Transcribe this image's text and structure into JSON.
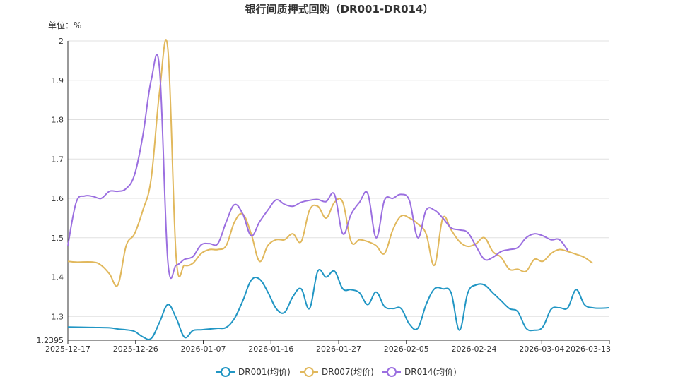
{
  "chart_data": {
    "type": "line",
    "title": "银行间质押式回购（DR001-DR014）",
    "unit_label": "单位：%",
    "xlabel": "",
    "ylabel": "",
    "ylim": [
      1.2395,
      2.0
    ],
    "y_ticks": [
      "1.2395",
      "1.3",
      "1.4",
      "1.5",
      "1.6",
      "1.7",
      "1.8",
      "1.9",
      "2"
    ],
    "x_tick_labels": [
      "2025-12-17",
      "2025-12-26",
      "2026-01-07",
      "2026-01-16",
      "2026-01-27",
      "2026-02-05",
      "2026-02-24",
      "2026-03-04",
      "2026-03-13"
    ],
    "grid": true,
    "legend_position": "bottom",
    "series": [
      {
        "name": "DR001(均价)",
        "color": "#2196c4",
        "points": [
          [
            0,
            1.273
          ],
          [
            3,
            1.272
          ],
          [
            5,
            1.271
          ],
          [
            6,
            1.268
          ],
          [
            7,
            1.266
          ],
          [
            8,
            1.262
          ],
          [
            9,
            1.248
          ],
          [
            10,
            1.244
          ],
          [
            11,
            1.285
          ],
          [
            12,
            1.33
          ],
          [
            13,
            1.296
          ],
          [
            14,
            1.247
          ],
          [
            15,
            1.264
          ],
          [
            16,
            1.266
          ],
          [
            17,
            1.268
          ],
          [
            18,
            1.27
          ],
          [
            19,
            1.272
          ],
          [
            20,
            1.295
          ],
          [
            21,
            1.34
          ],
          [
            22,
            1.392
          ],
          [
            23,
            1.395
          ],
          [
            24,
            1.362
          ],
          [
            25,
            1.32
          ],
          [
            26,
            1.31
          ],
          [
            27,
            1.35
          ],
          [
            28,
            1.37
          ],
          [
            29,
            1.32
          ],
          [
            30,
            1.415
          ],
          [
            31,
            1.4
          ],
          [
            32,
            1.415
          ],
          [
            33,
            1.37
          ],
          [
            34,
            1.368
          ],
          [
            35,
            1.36
          ],
          [
            36,
            1.33
          ],
          [
            37,
            1.362
          ],
          [
            38,
            1.325
          ],
          [
            39,
            1.32
          ],
          [
            40,
            1.32
          ],
          [
            41,
            1.28
          ],
          [
            42,
            1.27
          ],
          [
            43,
            1.33
          ],
          [
            44,
            1.37
          ],
          [
            45,
            1.37
          ],
          [
            46,
            1.36
          ],
          [
            47,
            1.265
          ],
          [
            48,
            1.36
          ],
          [
            49,
            1.38
          ],
          [
            50,
            1.38
          ],
          [
            51,
            1.36
          ],
          [
            52,
            1.34
          ],
          [
            53,
            1.32
          ],
          [
            54,
            1.312
          ],
          [
            55,
            1.27
          ],
          [
            56,
            1.265
          ],
          [
            57,
            1.273
          ],
          [
            58,
            1.318
          ],
          [
            59,
            1.322
          ],
          [
            60,
            1.322
          ],
          [
            61,
            1.368
          ],
          [
            62,
            1.33
          ],
          [
            63,
            1.322
          ],
          [
            64,
            1.321
          ],
          [
            65,
            1.322
          ]
        ]
      },
      {
        "name": "DR007(均价)",
        "color": "#e1b85c",
        "points": [
          [
            0,
            1.44
          ],
          [
            1,
            1.438
          ],
          [
            3,
            1.438
          ],
          [
            4,
            1.43
          ],
          [
            5,
            1.408
          ],
          [
            6,
            1.38
          ],
          [
            7,
            1.48
          ],
          [
            8,
            1.51
          ],
          [
            9,
            1.57
          ],
          [
            10,
            1.65
          ],
          [
            11,
            1.87
          ],
          [
            12,
            1.98
          ],
          [
            13,
            1.45
          ],
          [
            14,
            1.43
          ],
          [
            15,
            1.435
          ],
          [
            16,
            1.46
          ],
          [
            17,
            1.47
          ],
          [
            18,
            1.47
          ],
          [
            19,
            1.48
          ],
          [
            20,
            1.54
          ],
          [
            21,
            1.56
          ],
          [
            22,
            1.51
          ],
          [
            23,
            1.44
          ],
          [
            24,
            1.48
          ],
          [
            25,
            1.495
          ],
          [
            26,
            1.495
          ],
          [
            27,
            1.51
          ],
          [
            28,
            1.49
          ],
          [
            29,
            1.57
          ],
          [
            30,
            1.58
          ],
          [
            31,
            1.55
          ],
          [
            32,
            1.59
          ],
          [
            33,
            1.59
          ],
          [
            34,
            1.49
          ],
          [
            35,
            1.495
          ],
          [
            36,
            1.49
          ],
          [
            37,
            1.48
          ],
          [
            38,
            1.46
          ],
          [
            39,
            1.52
          ],
          [
            40,
            1.555
          ],
          [
            41,
            1.55
          ],
          [
            42,
            1.535
          ],
          [
            43,
            1.51
          ],
          [
            44,
            1.43
          ],
          [
            45,
            1.55
          ],
          [
            46,
            1.52
          ],
          [
            47,
            1.49
          ],
          [
            48,
            1.478
          ],
          [
            49,
            1.485
          ],
          [
            50,
            1.5
          ],
          [
            51,
            1.465
          ],
          [
            52,
            1.45
          ],
          [
            53,
            1.42
          ],
          [
            54,
            1.42
          ],
          [
            55,
            1.415
          ],
          [
            56,
            1.445
          ],
          [
            57,
            1.44
          ],
          [
            58,
            1.46
          ],
          [
            59,
            1.47
          ],
          [
            60,
            1.465
          ],
          [
            61,
            1.458
          ],
          [
            62,
            1.45
          ],
          [
            63,
            1.435
          ]
        ]
      },
      {
        "name": "DR014(均价)",
        "color": "#9b6fe0",
        "points": [
          [
            0,
            1.48
          ],
          [
            1,
            1.59
          ],
          [
            2,
            1.606
          ],
          [
            3,
            1.605
          ],
          [
            4,
            1.6
          ],
          [
            5,
            1.618
          ],
          [
            6,
            1.618
          ],
          [
            7,
            1.625
          ],
          [
            8,
            1.66
          ],
          [
            9,
            1.76
          ],
          [
            10,
            1.9
          ],
          [
            11,
            1.93
          ],
          [
            12,
            1.44
          ],
          [
            13,
            1.43
          ],
          [
            14,
            1.445
          ],
          [
            15,
            1.452
          ],
          [
            16,
            1.482
          ],
          [
            17,
            1.485
          ],
          [
            18,
            1.485
          ],
          [
            19,
            1.54
          ],
          [
            20,
            1.584
          ],
          [
            21,
            1.56
          ],
          [
            22,
            1.505
          ],
          [
            23,
            1.54
          ],
          [
            24,
            1.57
          ],
          [
            25,
            1.596
          ],
          [
            26,
            1.585
          ],
          [
            27,
            1.58
          ],
          [
            28,
            1.59
          ],
          [
            29,
            1.595
          ],
          [
            30,
            1.597
          ],
          [
            31,
            1.592
          ],
          [
            32,
            1.61
          ],
          [
            33,
            1.51
          ],
          [
            34,
            1.56
          ],
          [
            35,
            1.59
          ],
          [
            36,
            1.612
          ],
          [
            37,
            1.5
          ],
          [
            38,
            1.595
          ],
          [
            39,
            1.6
          ],
          [
            40,
            1.61
          ],
          [
            41,
            1.594
          ],
          [
            42,
            1.5
          ],
          [
            43,
            1.57
          ],
          [
            44,
            1.57
          ],
          [
            45,
            1.55
          ],
          [
            46,
            1.525
          ],
          [
            47,
            1.52
          ],
          [
            48,
            1.513
          ],
          [
            49,
            1.478
          ],
          [
            50,
            1.445
          ],
          [
            51,
            1.45
          ],
          [
            52,
            1.465
          ],
          [
            53,
            1.47
          ],
          [
            54,
            1.475
          ],
          [
            55,
            1.5
          ],
          [
            56,
            1.51
          ],
          [
            57,
            1.505
          ],
          [
            58,
            1.495
          ],
          [
            59,
            1.495
          ],
          [
            60,
            1.468
          ]
        ]
      }
    ]
  }
}
